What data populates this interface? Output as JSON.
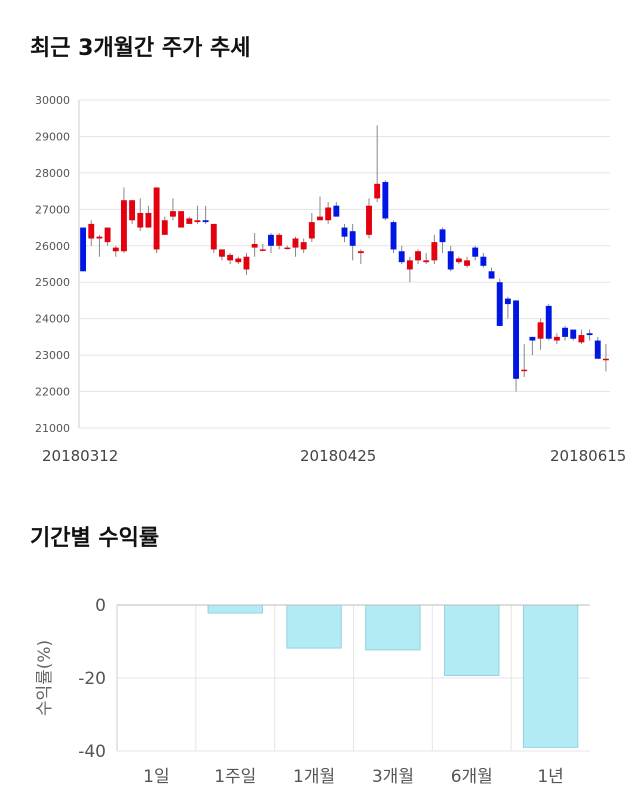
{
  "titles": {
    "candle": "최근 3개월간 주가 추세",
    "returns": "기간별 수익률"
  },
  "colors": {
    "up": "#e3000f",
    "down": "#0017e3",
    "bar_fill": "#b3ebf5",
    "bar_stroke": "#8fd3df",
    "grid": "#e5e5e5"
  },
  "chart_data": [
    {
      "type": "candlestick",
      "title": "최근 3개월간 주가 추세",
      "ylim": [
        21000,
        30000
      ],
      "yticks": [
        21000,
        22000,
        23000,
        24000,
        25000,
        26000,
        27000,
        28000,
        29000,
        30000
      ],
      "xtick_labels": [
        "20180312",
        "20180425",
        "20180615"
      ],
      "grid": true,
      "candles": [
        [
          26500,
          26500,
          25300,
          25300
        ],
        [
          26200,
          26700,
          26000,
          26600
        ],
        [
          26200,
          26300,
          25700,
          26250
        ],
        [
          26100,
          26500,
          26000,
          26500
        ],
        [
          25850,
          26000,
          25700,
          25950
        ],
        [
          25850,
          27600,
          25800,
          27250
        ],
        [
          26700,
          27250,
          26600,
          27250
        ],
        [
          26500,
          27300,
          26400,
          26900
        ],
        [
          26500,
          27100,
          26500,
          26900
        ],
        [
          25900,
          27600,
          25800,
          27600
        ],
        [
          26300,
          26800,
          26300,
          26700
        ],
        [
          26800,
          27300,
          26700,
          26950
        ],
        [
          26500,
          26900,
          26500,
          26950
        ],
        [
          26600,
          26800,
          26600,
          26750
        ],
        [
          26650,
          27100,
          26600,
          26700
        ],
        [
          26700,
          27100,
          26600,
          26650
        ],
        [
          25900,
          26600,
          25800,
          26600
        ],
        [
          25700,
          25900,
          25600,
          25900
        ],
        [
          25600,
          25800,
          25500,
          25750
        ],
        [
          25550,
          25700,
          25500,
          25650
        ],
        [
          25350,
          25800,
          25200,
          25700
        ],
        [
          25950,
          26350,
          25700,
          26050
        ],
        [
          25900,
          26050,
          25850,
          25900
        ],
        [
          26300,
          26350,
          25800,
          26000
        ],
        [
          26000,
          26350,
          25900,
          26300
        ],
        [
          25950,
          26000,
          25900,
          25950
        ],
        [
          25950,
          26250,
          25700,
          26200
        ],
        [
          25900,
          26200,
          25800,
          26100
        ],
        [
          26200,
          26900,
          26100,
          26650
        ],
        [
          26700,
          27350,
          26700,
          26800
        ],
        [
          26700,
          27200,
          26600,
          27050
        ],
        [
          27100,
          27200,
          26800,
          26800
        ],
        [
          26500,
          26600,
          26100,
          26250
        ],
        [
          26400,
          26600,
          25600,
          26000
        ],
        [
          25800,
          25900,
          25500,
          25850
        ],
        [
          26300,
          27300,
          26200,
          27100
        ],
        [
          27300,
          29300,
          27200,
          27700
        ],
        [
          27750,
          27800,
          26700,
          26750
        ],
        [
          26650,
          26700,
          25800,
          25900
        ],
        [
          25850,
          26000,
          25500,
          25550
        ],
        [
          25350,
          25700,
          25000,
          25600
        ],
        [
          25600,
          25900,
          25500,
          25850
        ],
        [
          25550,
          25800,
          25500,
          25600
        ],
        [
          25600,
          26300,
          25500,
          26100
        ],
        [
          26450,
          26500,
          25800,
          26100
        ],
        [
          25850,
          26000,
          25300,
          25350
        ],
        [
          25550,
          25700,
          25500,
          25650
        ],
        [
          25450,
          25700,
          25400,
          25600
        ],
        [
          25950,
          26000,
          25600,
          25700
        ],
        [
          25700,
          25800,
          25400,
          25450
        ],
        [
          25300,
          25400,
          25100,
          25100
        ],
        [
          25000,
          25100,
          23800,
          23800
        ],
        [
          24550,
          24600,
          24000,
          24400
        ],
        [
          24500,
          24500,
          22000,
          22350
        ],
        [
          22600,
          23300,
          22400,
          22600
        ],
        [
          23500,
          23500,
          23000,
          23400
        ],
        [
          23450,
          24000,
          23150,
          23900
        ],
        [
          24350,
          24400,
          23400,
          23450
        ],
        [
          23400,
          23600,
          23300,
          23500
        ],
        [
          23750,
          23800,
          23400,
          23500
        ],
        [
          23700,
          23700,
          23400,
          23450
        ],
        [
          23350,
          23700,
          23300,
          23550
        ],
        [
          23600,
          23700,
          23400,
          23550
        ],
        [
          23400,
          23500,
          22900,
          22900
        ],
        [
          22900,
          23300,
          22550,
          22900
        ]
      ]
    },
    {
      "type": "bar",
      "title": "기간별 수익률",
      "ylabel": "수익률(%)",
      "categories": [
        "1일",
        "1주일",
        "1개월",
        "3개월",
        "6개월",
        "1년"
      ],
      "values": [
        0,
        -2.2,
        -11.8,
        -12.3,
        -19.3,
        -39.0
      ],
      "ylim": [
        -40,
        0
      ],
      "yticks": [
        0,
        -20,
        -40
      ],
      "grid": true
    }
  ]
}
